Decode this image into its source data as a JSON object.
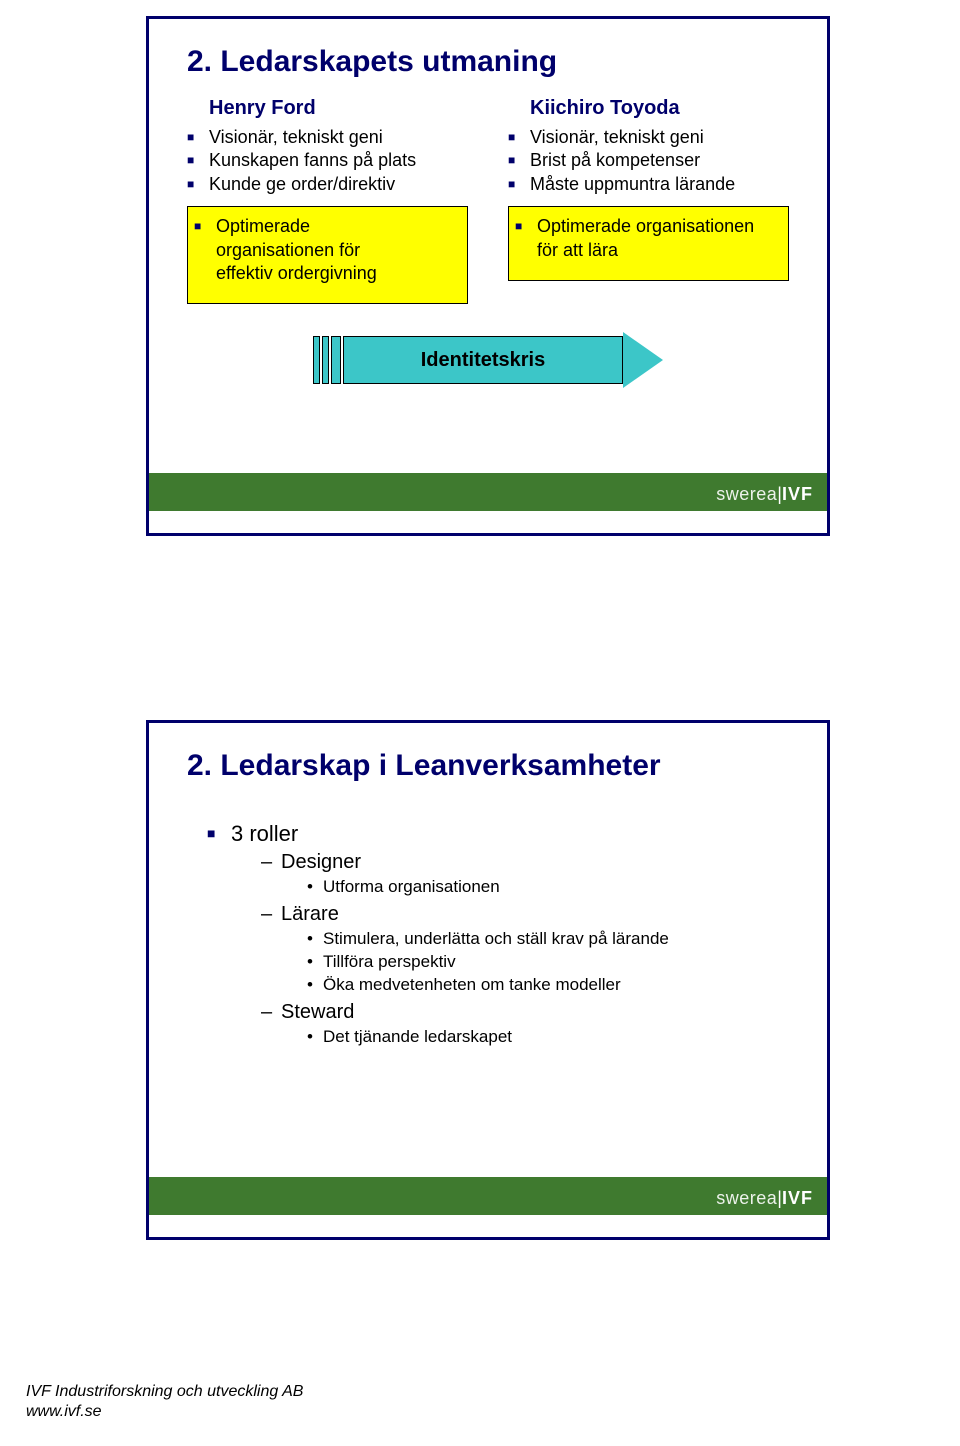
{
  "colors": {
    "accent": "#00006b",
    "yellow": "#ffff00",
    "arrow": "#3cc6c8",
    "greenbar": "#3f7a2f",
    "white": "#ffffff"
  },
  "logo": {
    "left": "swerea",
    "sep": "|",
    "right": "IVF"
  },
  "slide1": {
    "title": "2. Ledarskapets utmaning",
    "left": {
      "heading": "Henry Ford",
      "bullets": [
        "Visionär, tekniskt geni",
        "Kunskapen fanns på plats",
        "Kunde ge order/direktiv"
      ],
      "box": [
        "Optimerade",
        "organisationen för",
        "effektiv ordergivning"
      ]
    },
    "right": {
      "heading": "Kiichiro Toyoda",
      "bullets": [
        "Visionär, tekniskt geni",
        "Brist på kompetenser",
        "Måste uppmuntra lärande"
      ],
      "box": [
        "Optimerade organisationen",
        "för att lära"
      ]
    },
    "arrow_label": "Identitetskris"
  },
  "slide2": {
    "title": "2. Ledarskap i Leanverksamheter",
    "l1": "3 roller",
    "l2a": "Designer",
    "l3a1": "Utforma organisationen",
    "l2b": "Lärare",
    "l3b1": "Stimulera, underlätta och ställ krav på lärande",
    "l3b2": "Tillföra perspektiv",
    "l3b3": "Öka medvetenheten om tanke modeller",
    "l2c": "Steward",
    "l3c1": "Det tjänande ledarskapet"
  },
  "footer": {
    "line1": "IVF Industriforskning och utveckling AB",
    "line2": "www.ivf.se"
  }
}
